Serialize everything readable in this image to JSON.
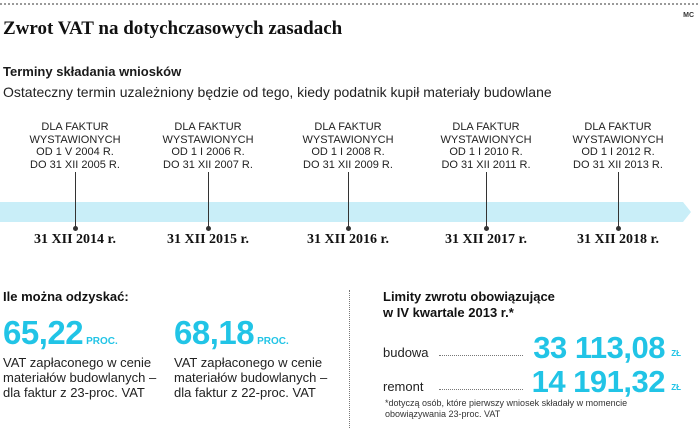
{
  "header": {
    "title": "Zwrot VAT na dotychczasowych zasadach",
    "corner_label": "MC"
  },
  "timeline": {
    "subtitle": "Terminy składania wniosków",
    "description": "Ostateczny termin uzależniony będzie od tego, kiedy podatnik kupił materiały budowlane",
    "bar_color": "#c9eef8",
    "periods": [
      {
        "lines": [
          "DLA FAKTUR",
          "WYSTAWIONYCH",
          "OD 1 V 2004 R.",
          "DO 31 XII 2005 R."
        ],
        "deadline": "31 XII 2014 r."
      },
      {
        "lines": [
          "DLA FAKTUR",
          "WYSTAWIONYCH",
          "OD 1 I 2006 R.",
          "DO 31 XII 2007 R."
        ],
        "deadline": "31 XII 2015 r."
      },
      {
        "lines": [
          "DLA FAKTUR",
          "WYSTAWIONYCH",
          "OD 1 I 2008 R.",
          "DO 31 XII 2009 R."
        ],
        "deadline": "31 XII 2016 r."
      },
      {
        "lines": [
          "DLA FAKTUR",
          "WYSTAWIONYCH",
          "OD 1 I 2010 R.",
          "DO 31 XII 2011 R."
        ],
        "deadline": "31 XII 2017 r."
      },
      {
        "lines": [
          "DLA FAKTUR",
          "WYSTAWIONYCH",
          "OD 1 I 2012 R.",
          "DO 31 XII 2013 R."
        ],
        "deadline": "31 XII 2018 r."
      }
    ]
  },
  "refund": {
    "heading": "Ile można odzyskać:",
    "items": [
      {
        "value": "65,22",
        "unit": "PROC.",
        "text": "VAT zapłaconego w cenie materiałów budowlanych – dla faktur z 23-proc. VAT"
      },
      {
        "value": "68,18",
        "unit": "PROC.",
        "text": "VAT zapłaconego w cenie materiałów budowlanych – dla faktur z 22-proc. VAT"
      }
    ]
  },
  "limits": {
    "heading_line1": "Limity zwrotu obowiązujące",
    "heading_line2": "w IV kwartale 2013 r.*",
    "rows": [
      {
        "name": "budowa",
        "value": "33 113,08",
        "currency": "ZŁ"
      },
      {
        "name": "remont",
        "value": "14 191,32",
        "currency": "ZŁ"
      }
    ],
    "footnote": "*dotyczą osób, które pierwszy wniosek składały w momencie obowiązywania 23-proc. VAT"
  },
  "colors": {
    "accent": "#21c4e6"
  }
}
